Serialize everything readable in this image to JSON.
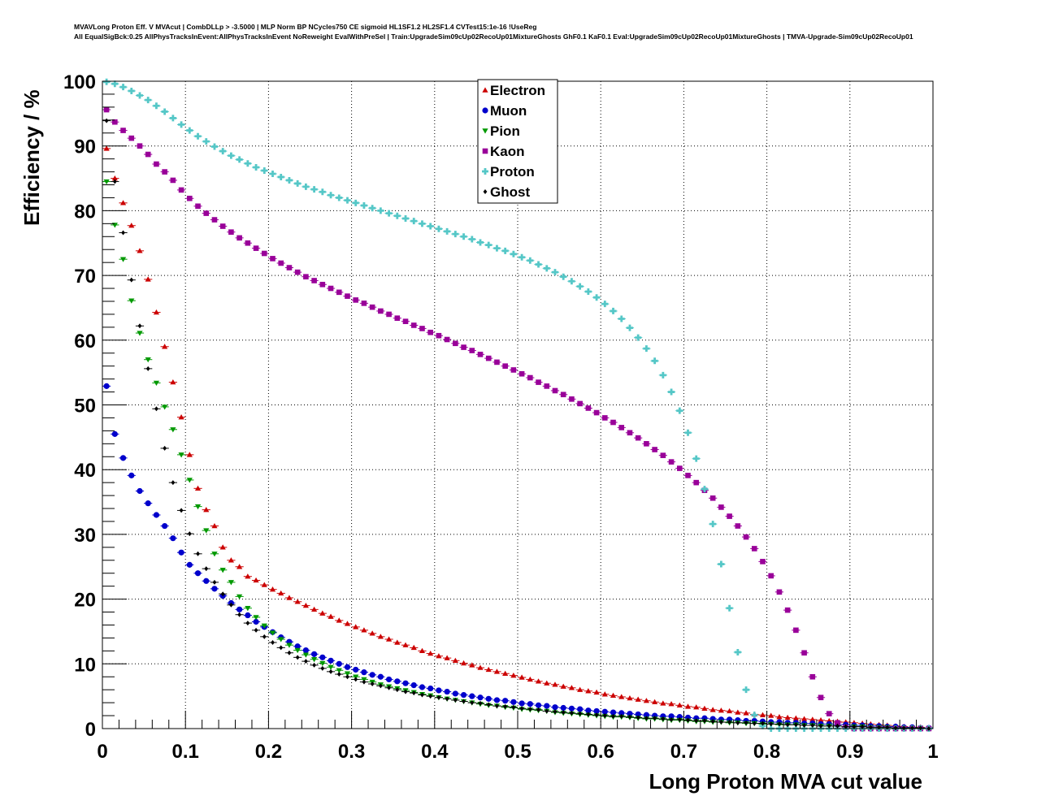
{
  "header": {
    "line1": "MVAVLong Proton Eff. V MVAcut | CombDLLp > -3.5000 | MLP Norm BP NCycles750 CE sigmoid HL1SF1.2 HL2SF1.4 CVTest15:1e-16 !UseReg",
    "line2": "All EqualSigBck:0.25 AllPhysTracksInEvent:AllPhysTracksInEvent NoReweight EvalWithPreSel | Train:UpgradeSim09cUp02RecoUp01MixtureGhosts GhF0.1 KaF0.1 Eval:UpgradeSim09cUp02RecoUp01MixtureGhosts | TMVA-Upgrade-Sim09cUp02RecoUp01"
  },
  "chart_data": {
    "type": "scatter",
    "title": "MVAVLong Proton Eff. V MVAcut",
    "xlabel": "Long Proton MVA cut value",
    "ylabel": "Efficiency / %",
    "xlim": [
      0,
      1
    ],
    "ylim": [
      0,
      100
    ],
    "xticks": [
      "0",
      "0.1",
      "0.2",
      "0.3",
      "0.4",
      "0.5",
      "0.6",
      "0.7",
      "0.8",
      "0.9",
      "1"
    ],
    "yticks": [
      "0",
      "10",
      "20",
      "30",
      "40",
      "50",
      "60",
      "70",
      "80",
      "90",
      "100"
    ],
    "grid": true,
    "legend_position": "top-center",
    "x": [
      0.005,
      0.015,
      0.025,
      0.035,
      0.045,
      0.055,
      0.065,
      0.075,
      0.085,
      0.095,
      0.105,
      0.115,
      0.125,
      0.135,
      0.145,
      0.155,
      0.165,
      0.175,
      0.185,
      0.195,
      0.205,
      0.215,
      0.225,
      0.235,
      0.245,
      0.255,
      0.265,
      0.275,
      0.285,
      0.295,
      0.305,
      0.315,
      0.325,
      0.335,
      0.345,
      0.355,
      0.365,
      0.375,
      0.385,
      0.395,
      0.405,
      0.415,
      0.425,
      0.435,
      0.445,
      0.455,
      0.465,
      0.475,
      0.485,
      0.495,
      0.505,
      0.515,
      0.525,
      0.535,
      0.545,
      0.555,
      0.565,
      0.575,
      0.585,
      0.595,
      0.605,
      0.615,
      0.625,
      0.635,
      0.645,
      0.655,
      0.665,
      0.675,
      0.685,
      0.695,
      0.705,
      0.715,
      0.725,
      0.735,
      0.745,
      0.755,
      0.765,
      0.775,
      0.785,
      0.795,
      0.805,
      0.815,
      0.825,
      0.835,
      0.845,
      0.855,
      0.865,
      0.875,
      0.885,
      0.895,
      0.905,
      0.915,
      0.925,
      0.935,
      0.945,
      0.955,
      0.965,
      0.975,
      0.985,
      0.995
    ],
    "series": [
      {
        "name": "Electron",
        "color": "#cc0000",
        "marker": "triangle-up",
        "values": [
          89.6,
          85.0,
          81.2,
          77.7,
          73.8,
          69.4,
          64.3,
          59.0,
          53.5,
          48.1,
          42.3,
          37.1,
          33.8,
          31.3,
          28.0,
          26.0,
          25.0,
          23.5,
          22.9,
          22.2,
          21.5,
          20.9,
          20.2,
          19.6,
          19.0,
          18.4,
          17.8,
          17.3,
          16.7,
          16.2,
          15.7,
          15.2,
          14.7,
          14.2,
          13.8,
          13.3,
          12.9,
          12.5,
          12.0,
          11.6,
          11.2,
          10.9,
          10.5,
          10.1,
          9.8,
          9.4,
          9.1,
          8.8,
          8.5,
          8.2,
          7.9,
          7.6,
          7.3,
          7.0,
          6.8,
          6.5,
          6.3,
          6.0,
          5.8,
          5.6,
          5.3,
          5.1,
          4.9,
          4.7,
          4.5,
          4.3,
          4.1,
          3.9,
          3.8,
          3.6,
          3.4,
          3.3,
          3.1,
          2.9,
          2.8,
          2.7,
          2.5,
          2.4,
          2.2,
          2.1,
          2.0,
          1.8,
          1.7,
          1.6,
          1.5,
          1.4,
          1.3,
          1.2,
          1.1,
          1.0,
          0.9,
          0.8,
          0.7,
          0.6,
          0.5,
          0.4,
          0.3,
          0.2,
          0.2,
          0.1
        ]
      },
      {
        "name": "Muon",
        "color": "#0000cc",
        "marker": "circle",
        "values": [
          52.9,
          45.5,
          41.8,
          39.1,
          36.7,
          34.8,
          33.0,
          31.3,
          29.4,
          27.2,
          25.3,
          24.0,
          22.8,
          21.6,
          20.5,
          19.4,
          18.4,
          17.5,
          16.5,
          15.7,
          14.9,
          14.1,
          13.4,
          12.7,
          12.1,
          11.5,
          11.0,
          10.5,
          10.0,
          9.5,
          9.1,
          8.7,
          8.3,
          8.0,
          7.6,
          7.3,
          7.0,
          6.7,
          6.4,
          6.2,
          5.9,
          5.7,
          5.4,
          5.2,
          5.0,
          4.8,
          4.6,
          4.4,
          4.3,
          4.1,
          3.9,
          3.8,
          3.6,
          3.5,
          3.3,
          3.2,
          3.1,
          3.0,
          2.8,
          2.7,
          2.6,
          2.5,
          2.4,
          2.3,
          2.2,
          2.1,
          2.0,
          1.9,
          1.9,
          1.8,
          1.7,
          1.6,
          1.6,
          1.5,
          1.4,
          1.4,
          1.3,
          1.2,
          1.2,
          1.1,
          1.0,
          1.0,
          0.9,
          0.9,
          0.8,
          0.8,
          0.7,
          0.7,
          0.6,
          0.6,
          0.5,
          0.5,
          0.4,
          0.4,
          0.3,
          0.3,
          0.2,
          0.2,
          0.1,
          0.1
        ]
      },
      {
        "name": "Pion",
        "color": "#009900",
        "marker": "triangle-down",
        "values": [
          84.5,
          77.8,
          72.5,
          66.1,
          61.1,
          57.0,
          53.4,
          49.7,
          46.2,
          42.3,
          38.4,
          34.3,
          30.6,
          27.0,
          24.5,
          22.6,
          20.4,
          18.6,
          17.2,
          15.9,
          14.8,
          13.8,
          12.9,
          12.1,
          11.4,
          10.7,
          10.1,
          9.5,
          9.0,
          8.5,
          8.0,
          7.6,
          7.2,
          6.8,
          6.5,
          6.2,
          5.9,
          5.6,
          5.3,
          5.1,
          4.8,
          4.6,
          4.4,
          4.2,
          4.0,
          3.8,
          3.6,
          3.5,
          3.3,
          3.2,
          3.0,
          2.9,
          2.8,
          2.7,
          2.5,
          2.4,
          2.3,
          2.2,
          2.1,
          2.0,
          1.9,
          1.8,
          1.8,
          1.7,
          1.6,
          1.5,
          1.5,
          1.4,
          1.3,
          1.3,
          1.2,
          1.1,
          1.1,
          1.0,
          1.0,
          0.9,
          0.9,
          0.8,
          0.8,
          0.7,
          0.7,
          0.6,
          0.6,
          0.6,
          0.5,
          0.5,
          0.4,
          0.4,
          0.4,
          0.3,
          0.3,
          0.3,
          0.2,
          0.2,
          0.2,
          0.1,
          0.1,
          0.1,
          0.1,
          0.0
        ]
      },
      {
        "name": "Kaon",
        "color": "#990099",
        "marker": "square",
        "values": [
          95.6,
          93.7,
          92.4,
          91.2,
          90.0,
          88.7,
          87.2,
          86.0,
          84.7,
          83.2,
          81.9,
          80.7,
          79.6,
          78.6,
          77.6,
          76.7,
          75.8,
          75.0,
          74.2,
          73.4,
          72.6,
          71.9,
          71.2,
          70.5,
          69.8,
          69.2,
          68.6,
          68.0,
          67.4,
          66.8,
          66.2,
          65.7,
          65.1,
          64.5,
          64.0,
          63.4,
          62.9,
          62.3,
          61.8,
          61.2,
          60.7,
          60.1,
          59.5,
          58.9,
          58.4,
          57.8,
          57.2,
          56.6,
          56.0,
          55.4,
          54.8,
          54.2,
          53.5,
          52.9,
          52.2,
          51.6,
          50.9,
          50.2,
          49.5,
          48.8,
          48.0,
          47.3,
          46.5,
          45.7,
          44.9,
          44.0,
          43.1,
          42.2,
          41.2,
          40.2,
          39.1,
          38.0,
          36.8,
          35.6,
          34.2,
          32.8,
          31.3,
          29.6,
          27.8,
          25.8,
          23.6,
          21.1,
          18.3,
          15.2,
          11.7,
          8.0,
          4.8,
          2.3,
          0.9,
          0.2,
          0.0,
          0.0,
          0.0,
          0.0,
          0.0,
          0.0,
          0.0,
          0.0,
          0.0,
          0.0
        ]
      },
      {
        "name": "Proton",
        "color": "#55c7c7",
        "marker": "plus",
        "values": [
          99.9,
          99.6,
          99.1,
          98.5,
          97.8,
          97.1,
          96.2,
          95.3,
          94.3,
          93.3,
          92.4,
          91.5,
          90.7,
          89.9,
          89.2,
          88.5,
          87.9,
          87.3,
          86.7,
          86.2,
          85.7,
          85.2,
          84.7,
          84.2,
          83.7,
          83.3,
          82.9,
          82.4,
          82.0,
          81.6,
          81.2,
          80.8,
          80.4,
          80.0,
          79.6,
          79.2,
          78.8,
          78.4,
          78.0,
          77.6,
          77.2,
          76.8,
          76.4,
          76.0,
          75.6,
          75.1,
          74.7,
          74.2,
          73.8,
          73.3,
          72.8,
          72.3,
          71.7,
          71.1,
          70.5,
          69.8,
          69.1,
          68.3,
          67.5,
          66.6,
          65.6,
          64.5,
          63.3,
          61.9,
          60.4,
          58.7,
          56.8,
          54.6,
          52.0,
          49.1,
          45.7,
          41.7,
          37.0,
          31.6,
          25.4,
          18.6,
          11.8,
          6.0,
          2.1,
          0.4,
          0.0,
          0.0,
          0.0,
          0.0,
          0.0,
          0.0,
          0.0,
          0.0,
          0.0,
          0.0,
          0.0,
          0.0,
          0.0,
          0.0,
          0.0,
          0.0,
          0.0,
          0.0,
          0.0,
          0.0
        ]
      },
      {
        "name": "Ghost",
        "color": "#000000",
        "marker": "diamond",
        "values": [
          93.9,
          84.5,
          76.6,
          69.3,
          62.2,
          55.6,
          49.4,
          43.3,
          38.0,
          33.7,
          30.1,
          27.0,
          24.7,
          22.6,
          20.8,
          19.1,
          17.6,
          16.3,
          15.2,
          14.2,
          13.3,
          12.5,
          11.7,
          11.0,
          10.4,
          9.8,
          9.3,
          8.8,
          8.4,
          8.0,
          7.6,
          7.2,
          6.9,
          6.6,
          6.3,
          6.0,
          5.7,
          5.5,
          5.2,
          5.0,
          4.8,
          4.6,
          4.4,
          4.2,
          4.0,
          3.9,
          3.7,
          3.5,
          3.4,
          3.3,
          3.1,
          3.0,
          2.9,
          2.7,
          2.6,
          2.5,
          2.4,
          2.3,
          2.2,
          2.1,
          2.0,
          1.9,
          1.9,
          1.8,
          1.7,
          1.6,
          1.6,
          1.5,
          1.4,
          1.4,
          1.3,
          1.2,
          1.2,
          1.1,
          1.0,
          1.0,
          0.9,
          0.9,
          0.8,
          0.8,
          0.7,
          0.7,
          0.6,
          0.6,
          0.5,
          0.5,
          0.4,
          0.4,
          0.4,
          0.3,
          0.3,
          0.3,
          0.2,
          0.2,
          0.2,
          0.1,
          0.1,
          0.1,
          0.1,
          0.0
        ]
      }
    ]
  }
}
